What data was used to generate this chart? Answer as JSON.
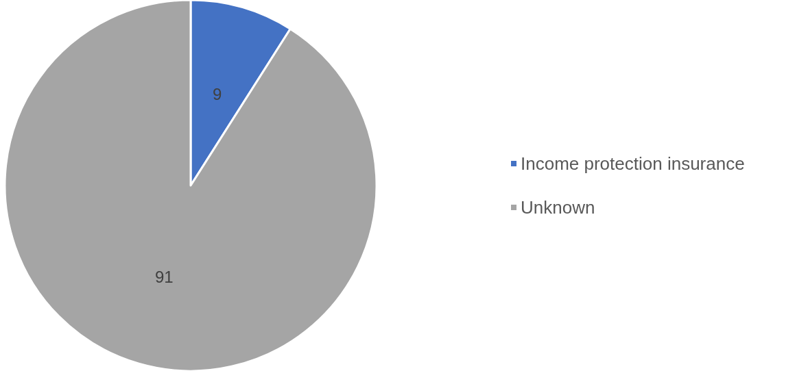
{
  "chart_data": {
    "type": "pie",
    "categories": [
      "Income protection insurance",
      "Unknown"
    ],
    "values": [
      9,
      91
    ],
    "colors": [
      "#4472c4",
      "#a5a5a5"
    ],
    "data_labels": true,
    "legend": "right"
  }
}
